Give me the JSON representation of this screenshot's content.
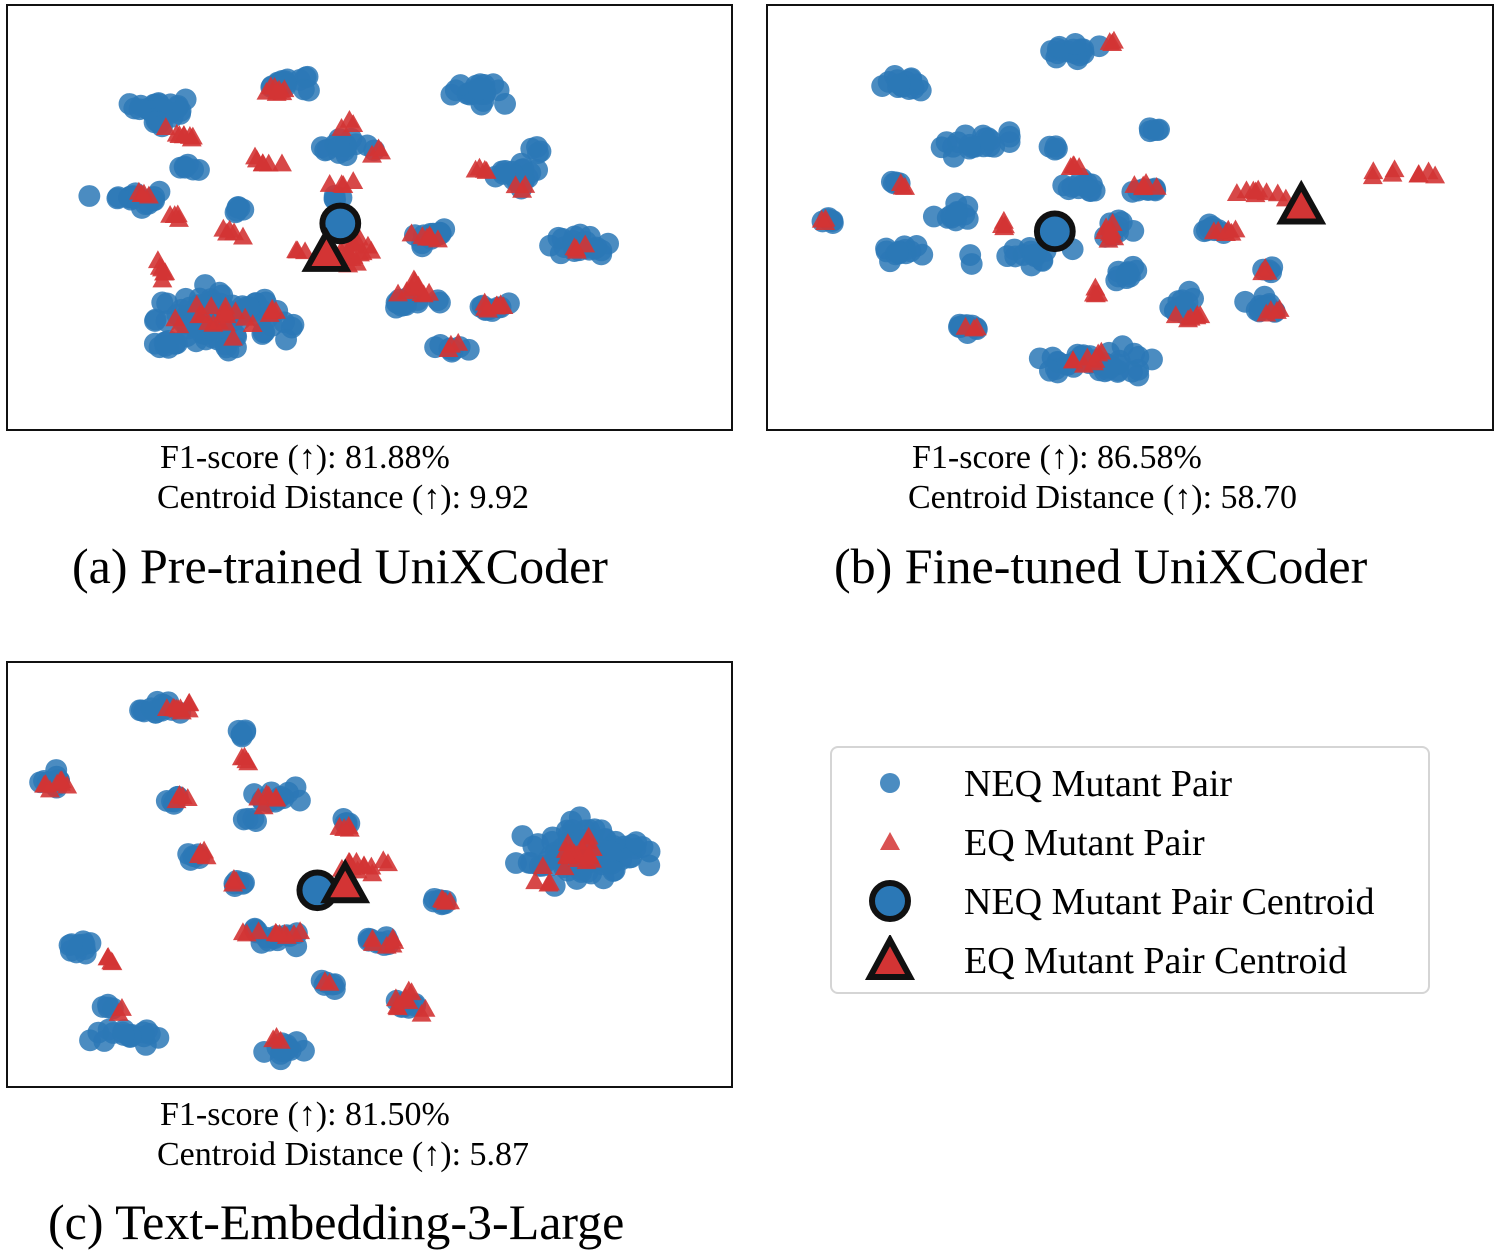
{
  "legend": {
    "items": [
      {
        "label": "NEQ Mutant Pair",
        "marker": "circle-small"
      },
      {
        "label": "EQ Mutant Pair",
        "marker": "triangle-small"
      },
      {
        "label": "NEQ Mutant Pair Centroid",
        "marker": "circle-large"
      },
      {
        "label": "EQ Mutant Pair Centroid",
        "marker": "triangle-large"
      }
    ]
  },
  "colors": {
    "neq": "#2b78b6",
    "eq": "#d33434",
    "centroid_outline": "#111111"
  },
  "chart_data": [
    {
      "type": "scatter",
      "title": "(a) Pre-trained UniXCoder",
      "f1_line": "F1-score (↑): 81.88%",
      "centroid_line": "Centroid Distance (↑): 9.92",
      "f1_score": 81.88,
      "centroid_distance": 9.92,
      "xlim": [
        0,
        100
      ],
      "ylim": [
        0,
        100
      ],
      "neq_clusters": [
        [
          20,
          78,
          3,
          2,
          22
        ],
        [
          38,
          84,
          3,
          2,
          16
        ],
        [
          66,
          82,
          4,
          2,
          22
        ],
        [
          16,
          55,
          3,
          2,
          18
        ],
        [
          24,
          63,
          1,
          1,
          6
        ],
        [
          46,
          68,
          3,
          2,
          16
        ],
        [
          31,
          52,
          1,
          1,
          6
        ],
        [
          71,
          61,
          3,
          2,
          18
        ],
        [
          59,
          45,
          2,
          2,
          16
        ],
        [
          80,
          43,
          4,
          2,
          22
        ],
        [
          45,
          55,
          1,
          1,
          4
        ],
        [
          29,
          24,
          8,
          5,
          90
        ],
        [
          21,
          18,
          2,
          1,
          10
        ],
        [
          68,
          27,
          2,
          1,
          10
        ],
        [
          62,
          17,
          2,
          1,
          8
        ],
        [
          56,
          29,
          3,
          2,
          12
        ],
        [
          20,
          74,
          1,
          1,
          6
        ],
        [
          74,
          67,
          1,
          1,
          4
        ]
      ],
      "eq_clusters": [
        [
          23,
          71,
          2,
          1,
          8
        ],
        [
          35,
          64,
          2,
          1,
          6
        ],
        [
          20,
          37,
          1,
          2,
          6
        ],
        [
          30,
          46,
          1,
          1,
          5
        ],
        [
          37,
          82,
          2,
          1,
          8
        ],
        [
          46,
          59,
          1,
          1,
          4
        ],
        [
          48,
          41,
          2,
          3,
          18
        ],
        [
          58,
          45,
          2,
          1,
          8
        ],
        [
          66,
          62,
          1,
          1,
          4
        ],
        [
          80,
          42,
          1,
          1,
          4
        ],
        [
          56,
          31,
          2,
          2,
          10
        ],
        [
          68,
          27,
          2,
          1,
          8
        ],
        [
          28,
          24,
          6,
          4,
          18
        ],
        [
          36,
          26,
          1,
          1,
          4
        ],
        [
          62,
          17,
          1,
          1,
          3
        ],
        [
          18,
          56,
          1,
          1,
          4
        ],
        [
          22,
          50,
          1,
          1,
          4
        ],
        [
          51,
          67,
          1,
          1,
          3
        ],
        [
          40,
          41,
          1,
          1,
          3
        ],
        [
          47,
          73,
          1,
          1,
          3
        ],
        [
          72,
          58,
          1,
          1,
          3
        ]
      ],
      "neq_centroid": [
        45.8,
        48.5
      ],
      "eq_centroid": [
        43.8,
        40.5
      ]
    },
    {
      "type": "scatter",
      "title": "(b) Fine-tuned UniXCoder",
      "f1_line": "F1-score (↑): 86.58%",
      "centroid_line": "Centroid Distance (↑): 58.70",
      "f1_score": 86.58,
      "centroid_distance": 58.7,
      "xlim": [
        0,
        100
      ],
      "ylim": [
        0,
        100
      ],
      "neq_clusters": [
        [
          41,
          92,
          3,
          2,
          16
        ],
        [
          18,
          84,
          3,
          2,
          16
        ],
        [
          29,
          69,
          4,
          2,
          20
        ],
        [
          53,
          72,
          1,
          1,
          5
        ],
        [
          43,
          58,
          2,
          2,
          12
        ],
        [
          25,
          51,
          3,
          2,
          12
        ],
        [
          17,
          41,
          3,
          2,
          14
        ],
        [
          35,
          41,
          4,
          2,
          16
        ],
        [
          7,
          49,
          2,
          1,
          6
        ],
        [
          49,
          36,
          2,
          2,
          10
        ],
        [
          27,
          22,
          2,
          1,
          10
        ],
        [
          45,
          13,
          6,
          3,
          40
        ],
        [
          57,
          28,
          2,
          2,
          12
        ],
        [
          69,
          28,
          2,
          2,
          12
        ],
        [
          62,
          47,
          2,
          1,
          8
        ],
        [
          53,
          57,
          2,
          1,
          8
        ],
        [
          48,
          47,
          2,
          2,
          10
        ],
        [
          70,
          37,
          1,
          1,
          4
        ],
        [
          16,
          59,
          1,
          1,
          4
        ],
        [
          39,
          67,
          1,
          1,
          4
        ]
      ],
      "eq_clusters": [
        [
          47,
          94,
          1,
          1,
          3
        ],
        [
          17,
          58,
          1,
          1,
          3
        ],
        [
          42,
          63,
          1,
          1,
          4
        ],
        [
          52,
          58,
          2,
          1,
          6
        ],
        [
          68,
          56,
          2,
          1,
          8
        ],
        [
          32,
          48,
          1,
          1,
          4
        ],
        [
          47,
          46,
          2,
          2,
          8
        ],
        [
          64,
          46,
          2,
          1,
          6
        ],
        [
          6,
          49,
          1,
          1,
          3
        ],
        [
          45,
          31,
          1,
          1,
          4
        ],
        [
          59,
          25,
          2,
          1,
          6
        ],
        [
          70,
          26,
          1,
          1,
          4
        ],
        [
          69,
          37,
          1,
          1,
          3
        ],
        [
          27,
          22,
          1,
          1,
          3
        ],
        [
          44,
          14,
          3,
          2,
          8
        ],
        [
          90,
          61,
          4,
          1,
          8
        ],
        [
          74,
          54,
          1,
          1,
          3
        ]
      ],
      "neq_centroid": [
        39.2,
        46.5
      ],
      "eq_centroid": [
        74.6,
        52.5
      ]
    },
    {
      "type": "scatter",
      "title": "(c) Text-Embedding-3-Large",
      "f1_line": "F1-score (↑): 81.50%",
      "centroid_line": "Centroid Distance (↑): 5.87",
      "f1_score": 81.5,
      "centroid_distance": 5.87,
      "xlim": [
        0,
        100
      ],
      "ylim": [
        0,
        100
      ],
      "neq_clusters": [
        [
          20,
          92,
          4,
          2,
          16
        ],
        [
          32,
          86,
          1,
          1,
          6
        ],
        [
          5,
          74,
          2,
          2,
          10
        ],
        [
          22,
          69,
          1,
          1,
          6
        ],
        [
          36,
          69,
          3,
          2,
          12
        ],
        [
          25,
          55,
          1,
          1,
          6
        ],
        [
          31,
          48,
          1,
          1,
          6
        ],
        [
          47,
          63,
          1,
          1,
          5
        ],
        [
          81,
          55,
          7,
          6,
          90
        ],
        [
          8,
          32,
          2,
          2,
          12
        ],
        [
          36,
          34,
          3,
          2,
          14
        ],
        [
          52,
          33,
          2,
          1,
          10
        ],
        [
          60,
          43,
          2,
          1,
          8
        ],
        [
          44,
          22,
          1,
          1,
          6
        ],
        [
          55,
          17,
          2,
          1,
          8
        ],
        [
          15,
          9,
          5,
          2,
          20
        ],
        [
          38,
          6,
          2,
          2,
          12
        ],
        [
          13,
          16,
          1,
          1,
          4
        ],
        [
          33,
          64,
          1,
          1,
          4
        ]
      ],
      "eq_clusters": [
        [
          22,
          92,
          4,
          1,
          10
        ],
        [
          5,
          73,
          2,
          2,
          8
        ],
        [
          32,
          79,
          1,
          1,
          4
        ],
        [
          23,
          69,
          1,
          1,
          4
        ],
        [
          36,
          69,
          2,
          1,
          6
        ],
        [
          26,
          55,
          1,
          1,
          4
        ],
        [
          31,
          48,
          1,
          1,
          3
        ],
        [
          47,
          62,
          1,
          1,
          4
        ],
        [
          49,
          52,
          3,
          2,
          12
        ],
        [
          36,
          35,
          3,
          1,
          10
        ],
        [
          52,
          33,
          2,
          1,
          6
        ],
        [
          61,
          43,
          1,
          1,
          4
        ],
        [
          55,
          18,
          2,
          2,
          8
        ],
        [
          12,
          28,
          1,
          1,
          4
        ],
        [
          14,
          15,
          1,
          1,
          2
        ],
        [
          37,
          8,
          1,
          1,
          3
        ],
        [
          80,
          55,
          3,
          4,
          18
        ],
        [
          75,
          48,
          2,
          2,
          4
        ],
        [
          44,
          22,
          1,
          1,
          2
        ],
        [
          58,
          16,
          1,
          1,
          2
        ]
      ],
      "neq_centroid": [
        42.5,
        46.0
      ],
      "eq_centroid": [
        46.5,
        47.0
      ]
    }
  ]
}
